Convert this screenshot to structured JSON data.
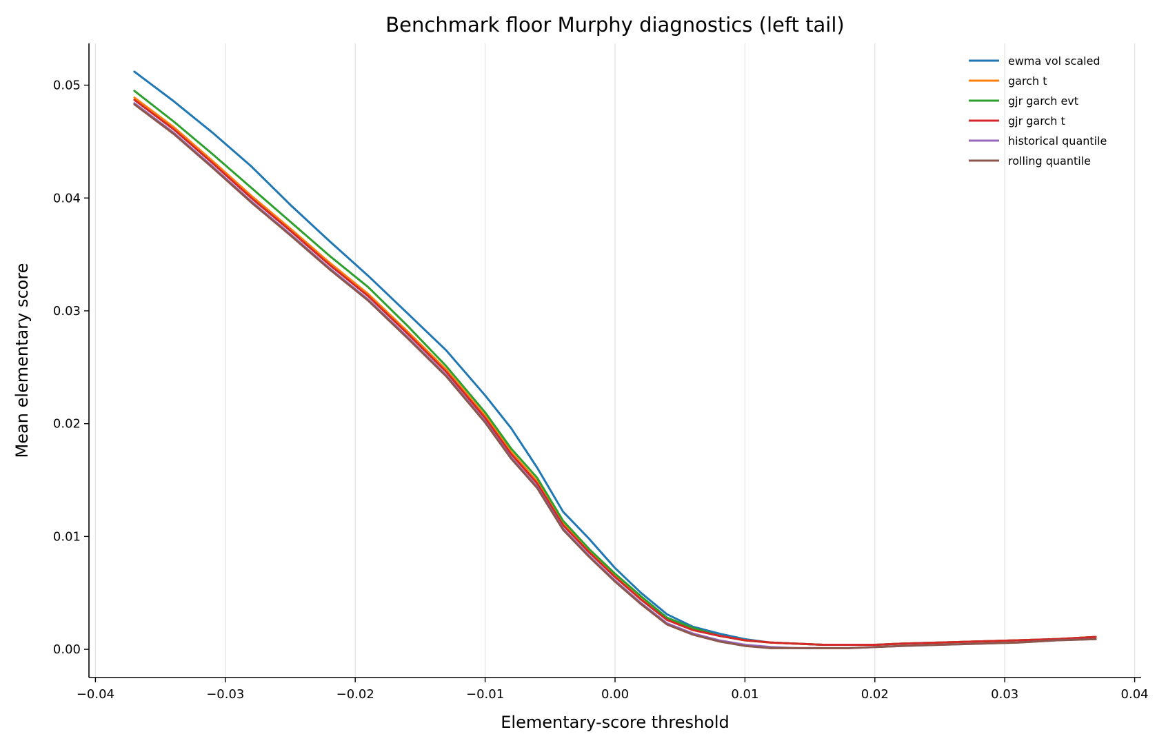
{
  "chart_data": {
    "type": "line",
    "title": "Benchmark floor Murphy diagnostics (left tail)",
    "xlabel": "Elementary-score threshold",
    "ylabel": "Mean elementary score",
    "xlim": [
      -0.0405,
      0.0405
    ],
    "ylim": [
      -0.0025,
      0.0537
    ],
    "xticks": [
      -0.04,
      -0.03,
      -0.02,
      -0.01,
      0.0,
      0.01,
      0.02,
      0.03,
      0.04
    ],
    "xtick_labels": [
      "−0.04",
      "−0.03",
      "−0.02",
      "−0.01",
      "0.00",
      "0.01",
      "0.02",
      "0.03",
      "0.04"
    ],
    "yticks": [
      0.0,
      0.01,
      0.02,
      0.03,
      0.04,
      0.05
    ],
    "ytick_labels": [
      "0.00",
      "0.01",
      "0.02",
      "0.03",
      "0.04",
      "0.05"
    ],
    "grid": "vertical",
    "legend_position": "top-right",
    "x": [
      -0.037,
      -0.034,
      -0.031,
      -0.028,
      -0.025,
      -0.022,
      -0.019,
      -0.016,
      -0.013,
      -0.01,
      -0.008,
      -0.006,
      -0.004,
      -0.002,
      0.0,
      0.002,
      0.004,
      0.006,
      0.008,
      0.01,
      0.012,
      0.014,
      0.016,
      0.018,
      0.02,
      0.022,
      0.025,
      0.028,
      0.031,
      0.034,
      0.037
    ],
    "series": [
      {
        "name": "ewma vol scaled",
        "color": "#1f77b4",
        "values": [
          0.0512,
          0.0486,
          0.0458,
          0.0428,
          0.0394,
          0.0362,
          0.0331,
          0.0298,
          0.0265,
          0.0225,
          0.0196,
          0.0161,
          0.0122,
          0.0098,
          0.0072,
          0.005,
          0.0031,
          0.002,
          0.0014,
          0.0009,
          0.0006,
          0.0005,
          0.0004,
          0.0004,
          0.0004,
          0.0005,
          0.0006,
          0.0007,
          0.0008,
          0.0009,
          0.0011
        ]
      },
      {
        "name": "garch t",
        "color": "#ff7f0e",
        "values": [
          0.0489,
          0.0463,
          0.0433,
          0.0402,
          0.0373,
          0.0343,
          0.0315,
          0.0282,
          0.0248,
          0.0207,
          0.0175,
          0.0149,
          0.0112,
          0.0088,
          0.0066,
          0.0046,
          0.0027,
          0.0018,
          0.0012,
          0.0008,
          0.0006,
          0.0005,
          0.0004,
          0.0004,
          0.0004,
          0.0005,
          0.0006,
          0.0007,
          0.0008,
          0.0009,
          0.0011
        ]
      },
      {
        "name": "gjr garch evt",
        "color": "#2ca02c",
        "values": [
          0.0495,
          0.0468,
          0.0439,
          0.0409,
          0.0379,
          0.0349,
          0.0321,
          0.0287,
          0.0251,
          0.021,
          0.0178,
          0.0152,
          0.0114,
          0.0089,
          0.0067,
          0.0047,
          0.0028,
          0.0019,
          0.0012,
          0.0008,
          0.0006,
          0.0005,
          0.0004,
          0.0004,
          0.0004,
          0.0005,
          0.0006,
          0.0007,
          0.0008,
          0.0009,
          0.0011
        ]
      },
      {
        "name": "gjr garch t",
        "color": "#d62728",
        "values": [
          0.0487,
          0.0461,
          0.0431,
          0.04,
          0.0371,
          0.0341,
          0.0313,
          0.028,
          0.0246,
          0.0205,
          0.0173,
          0.0147,
          0.011,
          0.0086,
          0.0064,
          0.0044,
          0.0026,
          0.0017,
          0.0012,
          0.0008,
          0.0006,
          0.0005,
          0.0004,
          0.0004,
          0.0004,
          0.0005,
          0.0006,
          0.0007,
          0.0008,
          0.0009,
          0.0011
        ]
      },
      {
        "name": "historical quantile",
        "color": "#9467bd",
        "values": [
          0.0484,
          0.0458,
          0.0428,
          0.0397,
          0.0368,
          0.0338,
          0.031,
          0.0277,
          0.0243,
          0.0202,
          0.017,
          0.0144,
          0.0107,
          0.0083,
          0.0061,
          0.0041,
          0.0023,
          0.0014,
          0.0008,
          0.0004,
          0.0002,
          0.0001,
          0.0001,
          0.0001,
          0.0002,
          0.0003,
          0.0004,
          0.0005,
          0.0006,
          0.0008,
          0.0009
        ]
      },
      {
        "name": "rolling quantile",
        "color": "#8c564b",
        "values": [
          0.0483,
          0.0457,
          0.0427,
          0.0396,
          0.0367,
          0.0337,
          0.0309,
          0.0276,
          0.0242,
          0.0201,
          0.0169,
          0.0143,
          0.0106,
          0.0082,
          0.006,
          0.004,
          0.0022,
          0.0013,
          0.0007,
          0.0003,
          0.0001,
          0.0001,
          0.0001,
          0.0001,
          0.0002,
          0.0003,
          0.0004,
          0.0005,
          0.0006,
          0.0008,
          0.0009
        ]
      }
    ]
  }
}
